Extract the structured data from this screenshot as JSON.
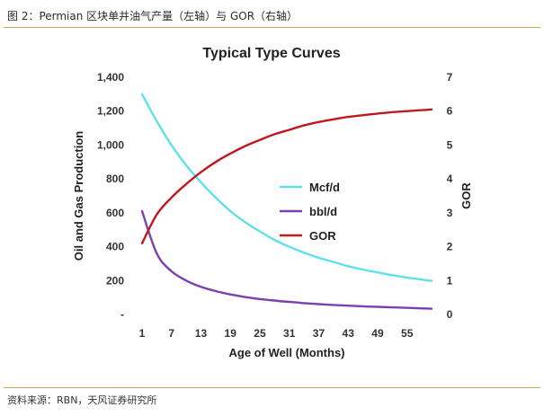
{
  "figure": {
    "caption": "图 2：Permian 区块单井油气产量（左轴）与 GOR（右轴）",
    "source": "资料来源：RBN，天风证券研究所"
  },
  "chart_data": {
    "type": "line",
    "title": "Typical Type Curves",
    "xlabel": "Age of Well (Months)",
    "ylabel": "Oil and Gas Production",
    "y2label": "GOR",
    "xlim": [
      1,
      60
    ],
    "ylim": [
      0,
      1400
    ],
    "y2lim": [
      0,
      7
    ],
    "x_ticks": [
      "1",
      "7",
      "13",
      "19",
      "25",
      "31",
      "37",
      "43",
      "49",
      "55"
    ],
    "y_ticks": [
      "-",
      "200",
      "400",
      "600",
      "800",
      "1,000",
      "1,200",
      "1,400"
    ],
    "y2_ticks": [
      "0",
      "1",
      "2",
      "3",
      "4",
      "5",
      "6",
      "7"
    ],
    "grid": false,
    "legend_position": "center-right",
    "x": [
      1,
      4,
      7,
      10,
      13,
      16,
      19,
      22,
      25,
      28,
      31,
      34,
      37,
      40,
      43,
      46,
      49,
      52,
      55,
      58,
      60
    ],
    "series": [
      {
        "name": "Mcf/d",
        "axis": "left",
        "color": "#5fe0ea",
        "values": [
          1300,
          1140,
          1000,
          880,
          780,
          690,
          610,
          545,
          490,
          440,
          400,
          365,
          335,
          310,
          285,
          265,
          248,
          232,
          218,
          206,
          198
        ]
      },
      {
        "name": "bbl/d",
        "axis": "left",
        "color": "#7b3fae",
        "values": [
          610,
          360,
          255,
          200,
          163,
          138,
          118,
          103,
          91,
          82,
          74,
          67,
          61,
          56,
          52,
          48,
          45,
          42,
          39,
          36,
          34
        ]
      },
      {
        "name": "GOR",
        "axis": "right",
        "color": "#c0181e",
        "values": [
          2.1,
          2.95,
          3.45,
          3.85,
          4.2,
          4.5,
          4.75,
          4.97,
          5.15,
          5.32,
          5.45,
          5.58,
          5.68,
          5.76,
          5.83,
          5.88,
          5.93,
          5.97,
          6.0,
          6.03,
          6.05
        ]
      }
    ]
  }
}
